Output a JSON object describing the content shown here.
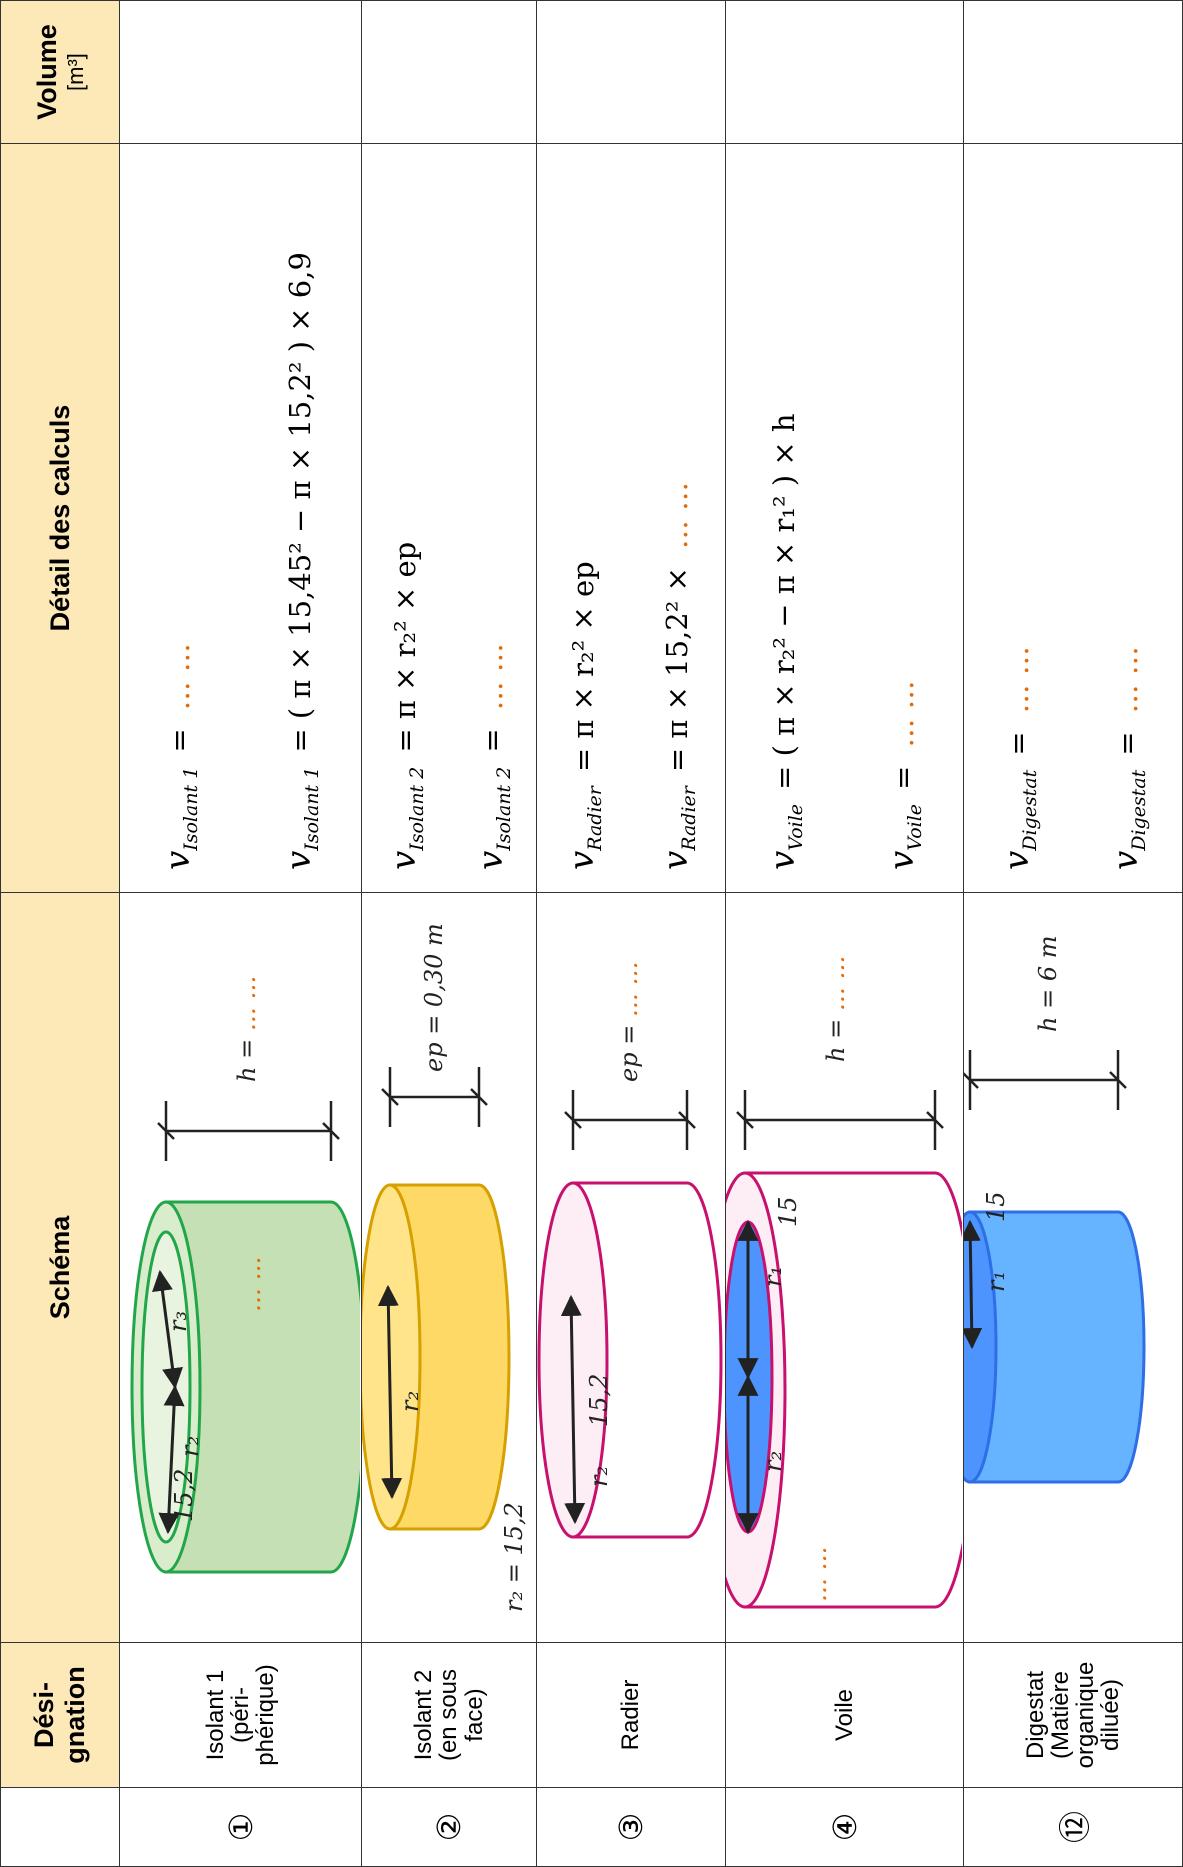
{
  "header": {
    "designation": "Dési-\ngnation",
    "schema": "Schéma",
    "calculs": "Détail des calculs",
    "volume": "Volume",
    "volume_unit": "[m³]"
  },
  "rows": [
    {
      "num": "①",
      "designation": "Isolant 1\n(péri-\nphérique)",
      "schema_labels": [
        "15,2",
        "r₂",
        "r₃",
        "… …",
        "h = … …"
      ],
      "calcs": [
        {
          "var": "v",
          "sub": "Isolant 1",
          "eq": "=",
          "blank": "… …"
        },
        {
          "var": "v",
          "sub": "Isolant 1",
          "eq": "= ( π × 15,45² − π × 15,2² ) × 6,9"
        }
      ]
    },
    {
      "num": "②",
      "designation": "Isolant 2\n(en sous\nface)",
      "schema_labels": [
        "r₂",
        "r₂ = 15,2",
        "ep = 0,30 m"
      ],
      "calcs": [
        {
          "var": "v",
          "sub": "Isolant 2",
          "eq": "= π × r₂² × ep"
        },
        {
          "var": "v",
          "sub": "Isolant 2",
          "eq": "=",
          "blank": "… …"
        }
      ]
    },
    {
      "num": "③",
      "designation": "Radier",
      "schema_labels": [
        "r₂",
        "15,2",
        "ep = … …"
      ],
      "calcs": [
        {
          "var": "v",
          "sub": "Radier",
          "eq": "= π × r₂² × ep"
        },
        {
          "var": "v",
          "sub": "Radier",
          "eq": "= π × 15,2² ×",
          "blank": "… …"
        }
      ]
    },
    {
      "num": "④",
      "designation": "Voile",
      "schema_labels": [
        "r₂",
        "r₁",
        "15",
        "… …",
        "h = … …"
      ],
      "calcs": [
        {
          "var": "v",
          "sub": "Voile",
          "eq": "= ( π × r₂² − π × r₁² ) × h"
        },
        {
          "var": "v",
          "sub": "Voile",
          "eq": "=",
          "blank": "… …"
        }
      ]
    },
    {
      "num": "⑫",
      "designation": "Digestat\n(Matière\norganique\ndiluée)",
      "schema_labels": [
        "r₁",
        "15",
        "h = 6 m"
      ],
      "calcs": [
        {
          "var": "v",
          "sub": "Digestat",
          "eq": "=",
          "blank": "… …"
        },
        {
          "var": "v",
          "sub": "Digestat",
          "eq": "=",
          "blank": "… …"
        }
      ]
    }
  ]
}
